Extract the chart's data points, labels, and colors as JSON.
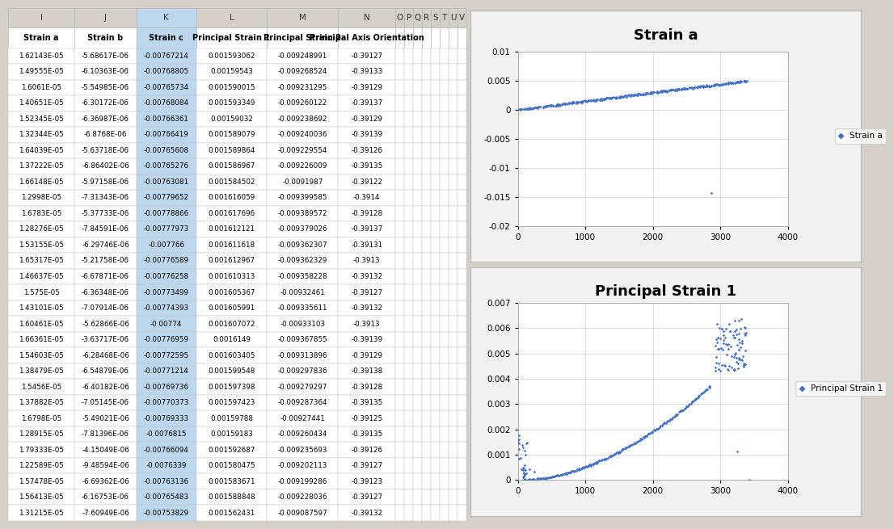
{
  "table_data": [
    [
      "1.62143E-05",
      "-5.68617E-06",
      "-0.00767214",
      "0.001593062",
      "-0.009248991",
      "-0.39127"
    ],
    [
      "1.49555E-05",
      "-6.10363E-06",
      "-0.00768805",
      "0.00159543",
      "-0.009268524",
      "-0.39133"
    ],
    [
      "1.6061E-05",
      "-5.54985E-06",
      "-0.00765734",
      "0.001590015",
      "-0.009231295",
      "-0.39129"
    ],
    [
      "1.40651E-05",
      "-6.30172E-06",
      "-0.00768084",
      "0.001593349",
      "-0.009260122",
      "-0.39137"
    ],
    [
      "1.52345E-05",
      "-6.36987E-06",
      "-0.00766361",
      "0.00159032",
      "-0.009238692",
      "-0.39129"
    ],
    [
      "1.32344E-05",
      "-6.8768E-06",
      "-0.00766419",
      "0.001589079",
      "-0.009240036",
      "-0.39139"
    ],
    [
      "1.64039E-05",
      "-5.63718E-06",
      "-0.00765608",
      "0.001589864",
      "-0.009229554",
      "-0.39126"
    ],
    [
      "1.37222E-05",
      "-6.86402E-06",
      "-0.00765276",
      "0.001586967",
      "-0.009226009",
      "-0.39135"
    ],
    [
      "1.66148E-05",
      "-5.97158E-06",
      "-0.00763081",
      "0.001584502",
      "-0.0091987",
      "-0.39122"
    ],
    [
      "1.2998E-05",
      "-7.31343E-06",
      "-0.00779652",
      "0.001616059",
      "-0.009399585",
      "-0.3914"
    ],
    [
      "1.6783E-05",
      "-5.37733E-06",
      "-0.00778866",
      "0.001617696",
      "-0.009389572",
      "-0.39128"
    ],
    [
      "1.28276E-05",
      "-7.84591E-06",
      "-0.00777973",
      "0.001612121",
      "-0.009379026",
      "-0.39137"
    ],
    [
      "1.53155E-05",
      "-6.29746E-06",
      "-0.007766",
      "0.001611618",
      "-0.009362307",
      "-0.39131"
    ],
    [
      "1.65317E-05",
      "-5.21758E-06",
      "-0.00776589",
      "0.001612967",
      "-0.009362329",
      "-0.3913"
    ],
    [
      "1.46637E-05",
      "-6.67871E-06",
      "-0.00776258",
      "0.001610313",
      "-0.009358228",
      "-0.39132"
    ],
    [
      "1.575E-05",
      "-6.36348E-06",
      "-0.00773499",
      "0.001605367",
      "-0.00932461",
      "-0.39127"
    ],
    [
      "1.43101E-05",
      "-7.07914E-06",
      "-0.00774393",
      "0.001605991",
      "-0.009335611",
      "-0.39132"
    ],
    [
      "1.60461E-05",
      "-5.62866E-06",
      "-0.00774",
      "0.001607072",
      "-0.00933103",
      "-0.3913"
    ],
    [
      "1.66361E-05",
      "-3.63717E-06",
      "-0.00776959",
      "0.0016149",
      "-0.009367855",
      "-0.39139"
    ],
    [
      "1.54603E-05",
      "-6.28468E-06",
      "-0.00772595",
      "0.001603405",
      "-0.009313896",
      "-0.39129"
    ],
    [
      "1.38479E-05",
      "-6.54879E-06",
      "-0.00771214",
      "0.001599548",
      "-0.009297836",
      "-0.39138"
    ],
    [
      "1.5456E-05",
      "-6.40182E-06",
      "-0.00769736",
      "0.001597398",
      "-0.009279297",
      "-0.39128"
    ],
    [
      "1.37882E-05",
      "-7.05145E-06",
      "-0.00770373",
      "0.001597423",
      "-0.009287364",
      "-0.39135"
    ],
    [
      "1.6798E-05",
      "-5.49021E-06",
      "-0.00769333",
      "0.00159788",
      "-0.00927441",
      "-0.39125"
    ],
    [
      "1.28915E-05",
      "-7.81396E-06",
      "-0.0076815",
      "0.00159183",
      "-0.009260434",
      "-0.39135"
    ],
    [
      "1.79333E-05",
      "-4.15049E-06",
      "-0.00766094",
      "0.001592687",
      "-0.009235693",
      "-0.39126"
    ],
    [
      "1.22589E-05",
      "-9.48594E-06",
      "-0.0076339",
      "0.001580475",
      "-0.009202113",
      "-0.39127"
    ],
    [
      "1.57478E-05",
      "-6.69362E-06",
      "-0.00763136",
      "0.001583671",
      "-0.009199286",
      "-0.39123"
    ],
    [
      "1.56413E-05",
      "-6.16753E-06",
      "-0.00765483",
      "0.001588848",
      "-0.009228036",
      "-0.39127"
    ],
    [
      "1.31215E-05",
      "-7.60949E-06",
      "-0.00753829",
      "0.001562431",
      "-0.009087597",
      "-0.39132"
    ]
  ],
  "col_letters": [
    "I",
    "J",
    "K",
    "L",
    "M",
    "N",
    "O",
    "P",
    "Q",
    "R",
    "S",
    "T",
    "U",
    "V"
  ],
  "col_names": [
    "Strain a",
    "Strain b",
    "Strain c",
    "Principal Strain 1",
    "Principal Strain 2",
    "Principal Axis Orientation"
  ],
  "chart1_title": "Strain a",
  "chart1_legend": "Strain a",
  "chart1_xlim": [
    0,
    4000
  ],
  "chart1_ylim": [
    -0.02,
    0.01
  ],
  "chart1_yticks": [
    0.01,
    0.005,
    0,
    -0.005,
    -0.01,
    -0.015,
    -0.02
  ],
  "chart1_xticks": [
    0,
    1000,
    2000,
    3000,
    4000
  ],
  "chart2_title": "Principal Strain 1",
  "chart2_legend": "Principal Strain 1",
  "chart2_xlim": [
    0,
    4000
  ],
  "chart2_ylim": [
    0,
    0.007
  ],
  "chart2_yticks": [
    0,
    0.001,
    0.002,
    0.003,
    0.004,
    0.005,
    0.006,
    0.007
  ],
  "chart2_xticks": [
    0,
    1000,
    2000,
    3000,
    4000
  ],
  "scatter_color": "#4472C4",
  "marker": "D",
  "fig_bg": "#D4D0C8",
  "cell_bg_white": "#FFFFFF",
  "cell_bg_blue": "#BDD7EE",
  "cell_bg_header_gray": "#D8D8D8",
  "cell_bg_header_blue": "#BDD7EE",
  "cell_border": "#A0A0A0",
  "chart_border": "#C8C8C8"
}
